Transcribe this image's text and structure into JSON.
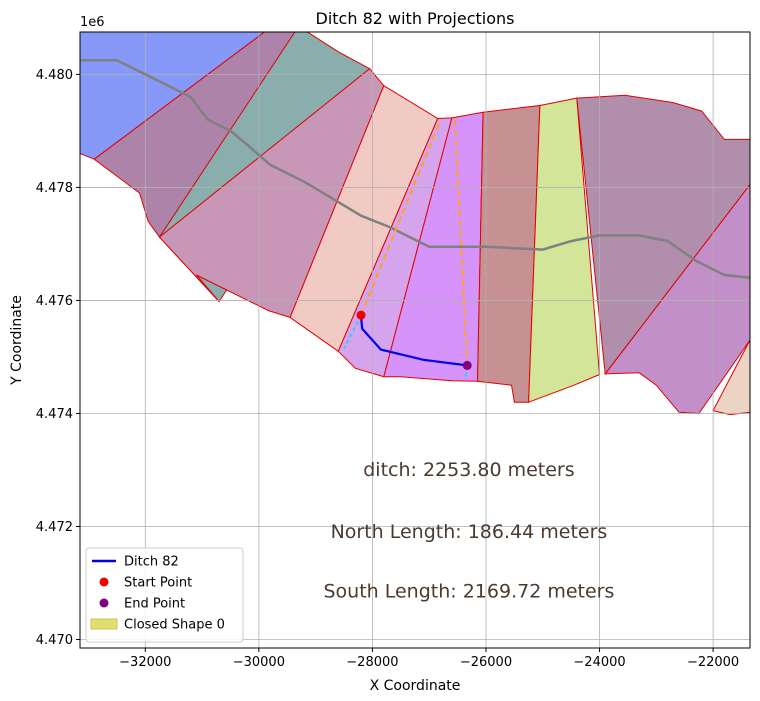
{
  "chart_data": {
    "type": "map",
    "title": "Ditch 82 with Projections",
    "xlabel": "X Coordinate",
    "ylabel": "Y Coordinate",
    "y_offset_label": "1e6",
    "xlim": [
      -33150,
      -21350
    ],
    "ylim": [
      4469850,
      4480750
    ],
    "xticks": [
      -32000,
      -30000,
      -28000,
      -26000,
      -24000,
      -22000
    ],
    "xtick_labels": [
      "−32000",
      "−30000",
      "−28000",
      "−26000",
      "−24000",
      "−22000"
    ],
    "yticks": [
      4470000,
      4472000,
      4474000,
      4476000,
      4478000,
      4480000
    ],
    "ytick_labels": [
      "4.470",
      "4.472",
      "4.474",
      "4.476",
      "4.478",
      "4.480"
    ],
    "grid": true,
    "legend_position": "lower-left",
    "legend": [
      {
        "label": "Ditch 82",
        "kind": "line",
        "color": "#0000ee"
      },
      {
        "label": "Start Point",
        "kind": "marker",
        "color": "#ee0000"
      },
      {
        "label": "End Point",
        "kind": "marker",
        "color": "#800080"
      },
      {
        "label": "Closed Shape 0",
        "kind": "patch",
        "color": "#dde06a"
      }
    ],
    "annotations": [
      {
        "text": "ditch: 2253.80 meters",
        "x": -26300,
        "y": 4473000
      },
      {
        "text": "North Length: 186.44 meters",
        "x": -26300,
        "y": 4471900
      },
      {
        "text": "South Length: 2169.72 meters",
        "x": -26300,
        "y": 4470850
      }
    ],
    "annotation_color": "#4b3a2e",
    "zones": [
      {
        "fill": "#8699f9",
        "points": [
          [
            -33150,
            4478600
          ],
          [
            -32900,
            4478500
          ],
          [
            -29900,
            4480750
          ],
          [
            -33150,
            4480750
          ]
        ]
      },
      {
        "fill": "#ad83a9",
        "points": [
          [
            -32900,
            4478500
          ],
          [
            -29900,
            4480750
          ],
          [
            -29200,
            4480800
          ],
          [
            -31750,
            4477120
          ],
          [
            -31950,
            4477400
          ],
          [
            -32100,
            4477900
          ]
        ]
      },
      {
        "fill": "#8aadad",
        "points": [
          [
            -29300,
            4480850
          ],
          [
            -28600,
            4480400
          ],
          [
            -28050,
            4480100
          ],
          [
            -30700,
            4475980
          ],
          [
            -31750,
            4477120
          ]
        ]
      },
      {
        "fill": "#c897b8",
        "points": [
          [
            -28050,
            4480100
          ],
          [
            -27800,
            4479800
          ],
          [
            -29450,
            4475700
          ],
          [
            -29830,
            4475820
          ],
          [
            -31100,
            4476450
          ],
          [
            -30700,
            4475980
          ],
          [
            -31750,
            4477120
          ]
        ]
      },
      {
        "fill": "#f1cbc3",
        "points": [
          [
            -27800,
            4479800
          ],
          [
            -26850,
            4479220
          ],
          [
            -28600,
            4475100
          ],
          [
            -29450,
            4475700
          ]
        ]
      },
      {
        "fill": "#d5a4ec",
        "points": [
          [
            -26850,
            4479220
          ],
          [
            -26600,
            4479230
          ],
          [
            -27800,
            4474650
          ],
          [
            -28300,
            4474800
          ],
          [
            -28600,
            4475100
          ]
        ]
      },
      {
        "fill": "#d694fa",
        "points": [
          [
            -26600,
            4479230
          ],
          [
            -26050,
            4479330
          ],
          [
            -26150,
            4474570
          ],
          [
            -26600,
            4474580
          ],
          [
            -27500,
            4474650
          ],
          [
            -27800,
            4474650
          ]
        ]
      },
      {
        "fill": "#c79092",
        "points": [
          [
            -26050,
            4479330
          ],
          [
            -25050,
            4479450
          ],
          [
            -25250,
            4474200
          ],
          [
            -25500,
            4474200
          ],
          [
            -25550,
            4474500
          ],
          [
            -26150,
            4474570
          ]
        ]
      },
      {
        "fill": "#d2e599",
        "points": [
          [
            -25050,
            4479450
          ],
          [
            -24400,
            4479580
          ],
          [
            -24000,
            4474690
          ],
          [
            -24450,
            4474500
          ],
          [
            -25250,
            4474200
          ]
        ]
      },
      {
        "fill": "#b28ead",
        "points": [
          [
            -24400,
            4479580
          ],
          [
            -23550,
            4479630
          ],
          [
            -22700,
            4479500
          ],
          [
            -22200,
            4479350
          ],
          [
            -21800,
            4478850
          ],
          [
            -21350,
            4478850
          ],
          [
            -21350,
            4478050
          ],
          [
            -23900,
            4474700
          ]
        ]
      },
      {
        "fill": "#c28fc9",
        "points": [
          [
            -21350,
            4478050
          ],
          [
            -23900,
            4474700
          ],
          [
            -23300,
            4474720
          ],
          [
            -23000,
            4474500
          ],
          [
            -22600,
            4474020
          ],
          [
            -22250,
            4474000
          ],
          [
            -21350,
            4475300
          ]
        ]
      },
      {
        "fill": "#ecd3c3",
        "points": [
          [
            -21350,
            4475300
          ],
          [
            -21350,
            4474020
          ],
          [
            -21700,
            4473980
          ],
          [
            -22000,
            4474050
          ]
        ]
      }
    ],
    "river": [
      [
        -33150,
        4480250
      ],
      [
        -32500,
        4480250
      ],
      [
        -31800,
        4479900
      ],
      [
        -31200,
        4479600
      ],
      [
        -30900,
        4479200
      ],
      [
        -30500,
        4479000
      ],
      [
        -30200,
        4478750
      ],
      [
        -29800,
        4478400
      ],
      [
        -29200,
        4478100
      ],
      [
        -28700,
        4477800
      ],
      [
        -28200,
        4477500
      ],
      [
        -27700,
        4477300
      ],
      [
        -27000,
        4476950
      ],
      [
        -26000,
        4476950
      ],
      [
        -25000,
        4476900
      ],
      [
        -24500,
        4477050
      ],
      [
        -24000,
        4477150
      ],
      [
        -23300,
        4477150
      ],
      [
        -22800,
        4477050
      ],
      [
        -22300,
        4476700
      ],
      [
        -21800,
        4476450
      ],
      [
        -21350,
        4476400
      ]
    ],
    "ditch": [
      [
        -28200,
        4475700
      ],
      [
        -28180,
        4475500
      ],
      [
        -27850,
        4475130
      ],
      [
        -27100,
        4474950
      ],
      [
        -26330,
        4474850
      ]
    ],
    "start_point": [
      -28200,
      4475740
    ],
    "end_point": [
      -26330,
      4474850
    ],
    "north_projection": [
      [
        -28200,
        4475740
      ],
      [
        -26800,
        4479200
      ]
    ],
    "south_projection": [
      [
        -26330,
        4474850
      ],
      [
        -26550,
        4479250
      ]
    ],
    "start_ext": [
      [
        -28200,
        4475740
      ],
      [
        -28500,
        4475150
      ]
    ],
    "end_ext": [
      [
        -26330,
        4474850
      ],
      [
        -26370,
        4474600
      ]
    ],
    "colors": {
      "zone_edge": "#e00000",
      "river": "#808080",
      "ditch": "#0000ee",
      "projection": "#ffa31a",
      "extension": "#33ccff",
      "start": "#ee0000",
      "end": "#800080",
      "grid": "#b0b0b0",
      "axes": "#000000"
    }
  }
}
